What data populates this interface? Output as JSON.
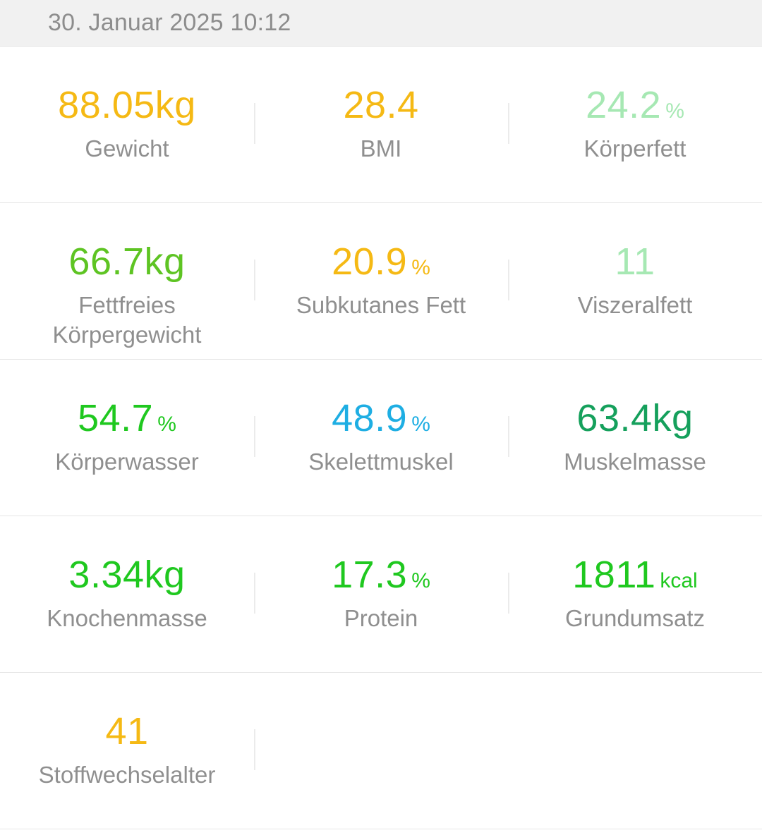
{
  "header": {
    "datetime": "30. Januar 2025 10:12"
  },
  "colors": {
    "orange": "#f5b914",
    "light_green": "#a6e8b3",
    "lime_green": "#5ec423",
    "green": "#1fc81f",
    "blue": "#1eaee3",
    "dark_green": "#15a05c",
    "label_gray": "#8f8f8f"
  },
  "metrics": [
    {
      "value": "88.05kg",
      "unit": "",
      "label": "Gewicht",
      "color": "#f5b914"
    },
    {
      "value": "28.4",
      "unit": "",
      "label": "BMI",
      "color": "#f5b914"
    },
    {
      "value": "24.2",
      "unit": "%",
      "label": "Körperfett",
      "color": "#a6e8b3"
    },
    {
      "value": "66.7kg",
      "unit": "",
      "label": "Fettfreies\nKörpergewicht",
      "color": "#5ec423"
    },
    {
      "value": "20.9",
      "unit": "%",
      "label": "Subkutanes Fett",
      "color": "#f5b914"
    },
    {
      "value": "11",
      "unit": "",
      "label": "Viszeralfett",
      "color": "#a6e8b3"
    },
    {
      "value": "54.7",
      "unit": "%",
      "label": "Körperwasser",
      "color": "#1fc81f"
    },
    {
      "value": "48.9",
      "unit": "%",
      "label": "Skelettmuskel",
      "color": "#1eaee3"
    },
    {
      "value": "63.4kg",
      "unit": "",
      "label": "Muskelmasse",
      "color": "#15a05c"
    },
    {
      "value": "3.34kg",
      "unit": "",
      "label": "Knochenmasse",
      "color": "#1fc81f"
    },
    {
      "value": "17.3",
      "unit": "%",
      "label": "Protein",
      "color": "#1fc81f"
    },
    {
      "value": "1811",
      "unit": "kcal",
      "label": "Grundumsatz",
      "color": "#1fc81f"
    },
    {
      "value": "41",
      "unit": "",
      "label": "Stoffwechselalter",
      "color": "#f5b914"
    }
  ]
}
